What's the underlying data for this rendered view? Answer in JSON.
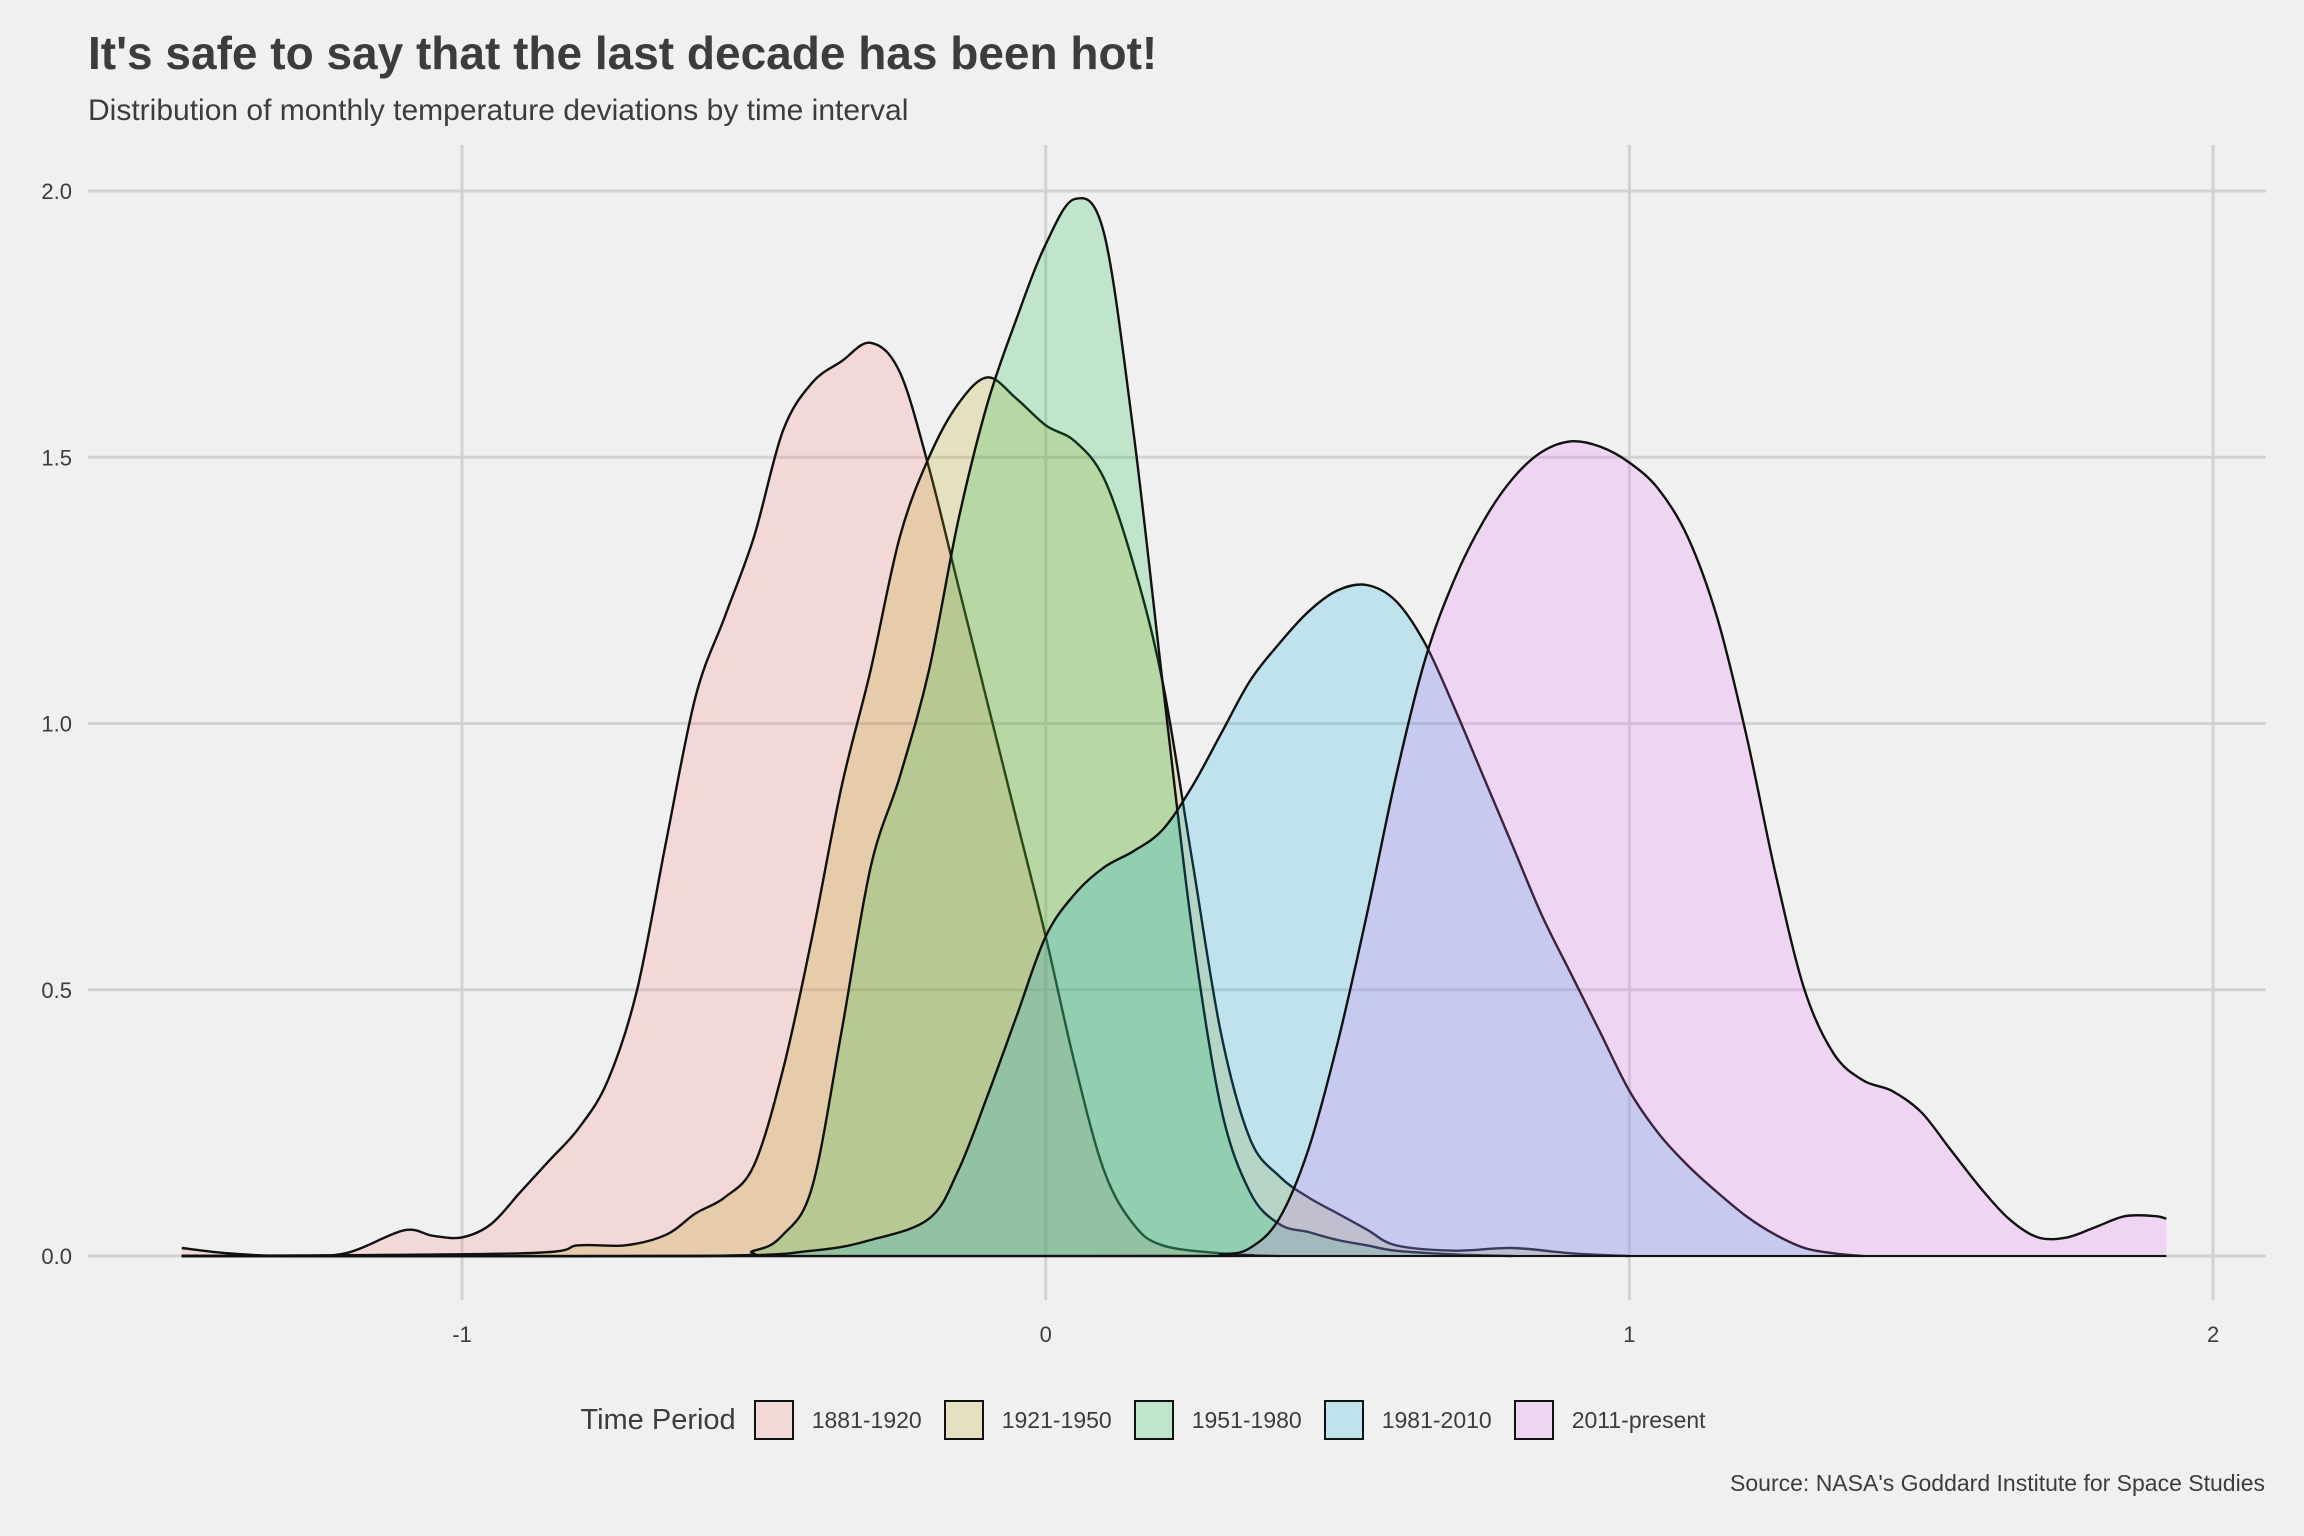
{
  "chart_data": {
    "type": "area",
    "title": "It's safe to say that the last decade has been hot!",
    "subtitle": "Distribution of monthly temperature deviations by time interval",
    "caption": "Source: NASA's Goddard Institute for Space Studies",
    "xlabel": "",
    "ylabel": "",
    "xlim": [
      -1.6,
      2.1
    ],
    "ylim": [
      -0.08,
      2.1
    ],
    "x_ticks": [
      -1,
      0,
      1,
      2
    ],
    "y_ticks": [
      0.0,
      0.5,
      1.0,
      1.5,
      2.0
    ],
    "y_tick_labels": [
      "0.0",
      "0.5",
      "1.0",
      "1.5",
      "2.0"
    ],
    "grid": true,
    "legend": {
      "title": "Time Period",
      "position": "bottom"
    },
    "series": [
      {
        "name": "1881-1920",
        "color": "#f8766d",
        "points": [
          [
            -1.48,
            0.015
          ],
          [
            -1.4,
            0.005
          ],
          [
            -1.3,
            0.0
          ],
          [
            -1.2,
            0.005
          ],
          [
            -1.1,
            0.048
          ],
          [
            -1.05,
            0.038
          ],
          [
            -1.0,
            0.035
          ],
          [
            -0.95,
            0.06
          ],
          [
            -0.9,
            0.12
          ],
          [
            -0.85,
            0.18
          ],
          [
            -0.8,
            0.24
          ],
          [
            -0.75,
            0.33
          ],
          [
            -0.7,
            0.5
          ],
          [
            -0.65,
            0.78
          ],
          [
            -0.6,
            1.05
          ],
          [
            -0.55,
            1.2
          ],
          [
            -0.5,
            1.35
          ],
          [
            -0.45,
            1.55
          ],
          [
            -0.4,
            1.64
          ],
          [
            -0.35,
            1.68
          ],
          [
            -0.3,
            1.715
          ],
          [
            -0.25,
            1.66
          ],
          [
            -0.2,
            1.48
          ],
          [
            -0.15,
            1.26
          ],
          [
            -0.1,
            1.04
          ],
          [
            -0.05,
            0.82
          ],
          [
            0.0,
            0.6
          ],
          [
            0.05,
            0.36
          ],
          [
            0.1,
            0.16
          ],
          [
            0.15,
            0.06
          ],
          [
            0.2,
            0.02
          ],
          [
            0.3,
            0.005
          ],
          [
            0.4,
            0.0
          ]
        ]
      },
      {
        "name": "1921-1950",
        "color": "#b79f00",
        "points": [
          [
            -1.48,
            0.0
          ],
          [
            -0.9,
            0.005
          ],
          [
            -0.8,
            0.02
          ],
          [
            -0.72,
            0.02
          ],
          [
            -0.65,
            0.04
          ],
          [
            -0.6,
            0.08
          ],
          [
            -0.55,
            0.11
          ],
          [
            -0.5,
            0.17
          ],
          [
            -0.45,
            0.35
          ],
          [
            -0.4,
            0.6
          ],
          [
            -0.35,
            0.88
          ],
          [
            -0.3,
            1.1
          ],
          [
            -0.25,
            1.35
          ],
          [
            -0.2,
            1.5
          ],
          [
            -0.15,
            1.6
          ],
          [
            -0.1,
            1.65
          ],
          [
            -0.05,
            1.61
          ],
          [
            0.0,
            1.56
          ],
          [
            0.05,
            1.53
          ],
          [
            0.1,
            1.46
          ],
          [
            0.15,
            1.3
          ],
          [
            0.2,
            1.08
          ],
          [
            0.25,
            0.75
          ],
          [
            0.3,
            0.42
          ],
          [
            0.35,
            0.22
          ],
          [
            0.4,
            0.15
          ],
          [
            0.45,
            0.11
          ],
          [
            0.5,
            0.08
          ],
          [
            0.55,
            0.05
          ],
          [
            0.6,
            0.02
          ],
          [
            0.7,
            0.01
          ],
          [
            0.8,
            0.015
          ],
          [
            0.9,
            0.005
          ],
          [
            1.0,
            0.0
          ]
        ]
      },
      {
        "name": "1951-1980",
        "color": "#00ba38",
        "points": [
          [
            -1.48,
            0.0
          ],
          [
            -0.6,
            0.0
          ],
          [
            -0.5,
            0.01
          ],
          [
            -0.45,
            0.04
          ],
          [
            -0.4,
            0.13
          ],
          [
            -0.35,
            0.42
          ],
          [
            -0.3,
            0.73
          ],
          [
            -0.25,
            0.9
          ],
          [
            -0.2,
            1.1
          ],
          [
            -0.15,
            1.38
          ],
          [
            -0.1,
            1.6
          ],
          [
            -0.05,
            1.76
          ],
          [
            0.0,
            1.9
          ],
          [
            0.05,
            1.985
          ],
          [
            0.1,
            1.92
          ],
          [
            0.15,
            1.55
          ],
          [
            0.2,
            1.08
          ],
          [
            0.25,
            0.62
          ],
          [
            0.3,
            0.28
          ],
          [
            0.35,
            0.12
          ],
          [
            0.4,
            0.06
          ],
          [
            0.45,
            0.045
          ],
          [
            0.5,
            0.03
          ],
          [
            0.55,
            0.02
          ],
          [
            0.6,
            0.01
          ],
          [
            0.7,
            0.003
          ],
          [
            0.8,
            0.0
          ]
        ]
      },
      {
        "name": "1981-2010",
        "color": "#00a9e0",
        "points": [
          [
            -1.48,
            0.0
          ],
          [
            -0.6,
            0.0
          ],
          [
            -0.4,
            0.01
          ],
          [
            -0.3,
            0.03
          ],
          [
            -0.2,
            0.07
          ],
          [
            -0.15,
            0.16
          ],
          [
            -0.1,
            0.3
          ],
          [
            -0.05,
            0.45
          ],
          [
            0.0,
            0.6
          ],
          [
            0.05,
            0.68
          ],
          [
            0.1,
            0.73
          ],
          [
            0.15,
            0.76
          ],
          [
            0.2,
            0.8
          ],
          [
            0.25,
            0.88
          ],
          [
            0.3,
            0.98
          ],
          [
            0.35,
            1.08
          ],
          [
            0.4,
            1.15
          ],
          [
            0.45,
            1.21
          ],
          [
            0.5,
            1.25
          ],
          [
            0.55,
            1.26
          ],
          [
            0.6,
            1.23
          ],
          [
            0.65,
            1.15
          ],
          [
            0.7,
            1.03
          ],
          [
            0.75,
            0.9
          ],
          [
            0.8,
            0.77
          ],
          [
            0.85,
            0.64
          ],
          [
            0.9,
            0.53
          ],
          [
            0.95,
            0.42
          ],
          [
            1.0,
            0.31
          ],
          [
            1.05,
            0.23
          ],
          [
            1.1,
            0.17
          ],
          [
            1.15,
            0.12
          ],
          [
            1.2,
            0.075
          ],
          [
            1.25,
            0.04
          ],
          [
            1.3,
            0.015
          ],
          [
            1.35,
            0.005
          ],
          [
            1.4,
            0.0
          ]
        ]
      },
      {
        "name": "2011-present",
        "color": "#e76bf3",
        "points": [
          [
            -1.48,
            0.0
          ],
          [
            0.2,
            0.0
          ],
          [
            0.3,
            0.003
          ],
          [
            0.35,
            0.015
          ],
          [
            0.4,
            0.07
          ],
          [
            0.45,
            0.2
          ],
          [
            0.5,
            0.4
          ],
          [
            0.55,
            0.64
          ],
          [
            0.6,
            0.9
          ],
          [
            0.65,
            1.12
          ],
          [
            0.7,
            1.27
          ],
          [
            0.75,
            1.38
          ],
          [
            0.8,
            1.46
          ],
          [
            0.85,
            1.51
          ],
          [
            0.9,
            1.53
          ],
          [
            0.95,
            1.52
          ],
          [
            1.0,
            1.49
          ],
          [
            1.05,
            1.44
          ],
          [
            1.1,
            1.35
          ],
          [
            1.15,
            1.2
          ],
          [
            1.2,
            0.98
          ],
          [
            1.25,
            0.72
          ],
          [
            1.3,
            0.5
          ],
          [
            1.35,
            0.38
          ],
          [
            1.4,
            0.33
          ],
          [
            1.45,
            0.31
          ],
          [
            1.5,
            0.27
          ],
          [
            1.55,
            0.2
          ],
          [
            1.6,
            0.13
          ],
          [
            1.65,
            0.07
          ],
          [
            1.7,
            0.035
          ],
          [
            1.75,
            0.035
          ],
          [
            1.8,
            0.055
          ],
          [
            1.85,
            0.075
          ],
          [
            1.9,
            0.075
          ],
          [
            1.92,
            0.07
          ]
        ]
      }
    ]
  }
}
